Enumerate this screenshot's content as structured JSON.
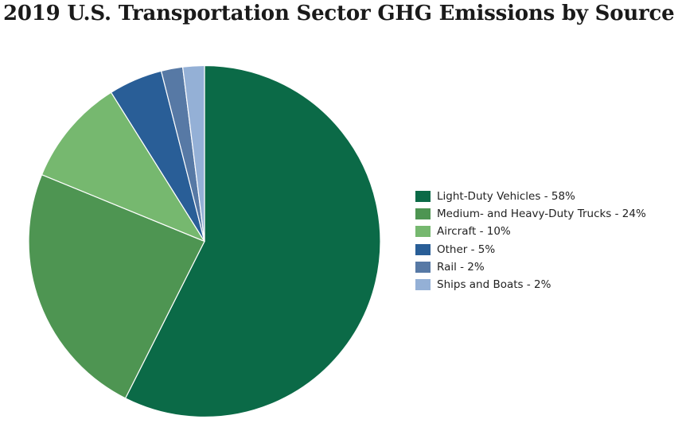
{
  "chart_data": {
    "type": "pie",
    "title": "2019 U.S. Transportation Sector GHG Emissions by Source",
    "legend_position": "right",
    "slices": [
      {
        "label": "Light-Duty Vehicles - 58%",
        "value": 58,
        "color": "#0b6a47"
      },
      {
        "label": "Medium- and Heavy-Duty Trucks - 24%",
        "value": 24,
        "color": "#4e9552"
      },
      {
        "label": "Aircraft - 10%",
        "value": 10,
        "color": "#76b86f"
      },
      {
        "label": "Other - 5%",
        "value": 5,
        "color": "#295e97"
      },
      {
        "label": "Rail - 2%",
        "value": 2,
        "color": "#5779a5"
      },
      {
        "label": "Ships and Boats - 2%",
        "value": 2,
        "color": "#94b0d6"
      }
    ]
  }
}
